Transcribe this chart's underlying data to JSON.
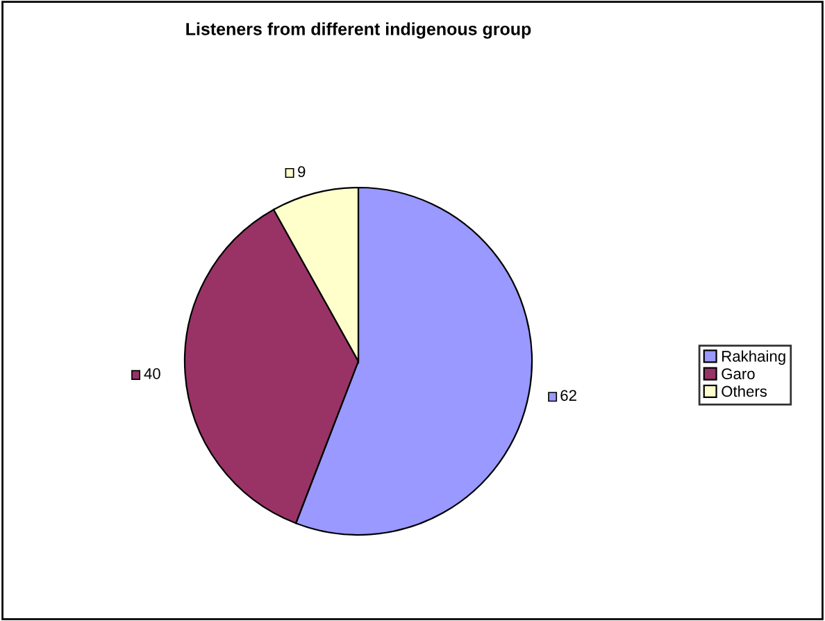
{
  "chart_data": {
    "type": "pie",
    "title": "Listeners from different indigenous group",
    "categories": [
      "Rakhaing",
      "Garo",
      "Others"
    ],
    "values": [
      62,
      40,
      9
    ],
    "colors": [
      "#9999ff",
      "#993366",
      "#ffffcc"
    ],
    "data_labels": true,
    "legend": "right"
  }
}
